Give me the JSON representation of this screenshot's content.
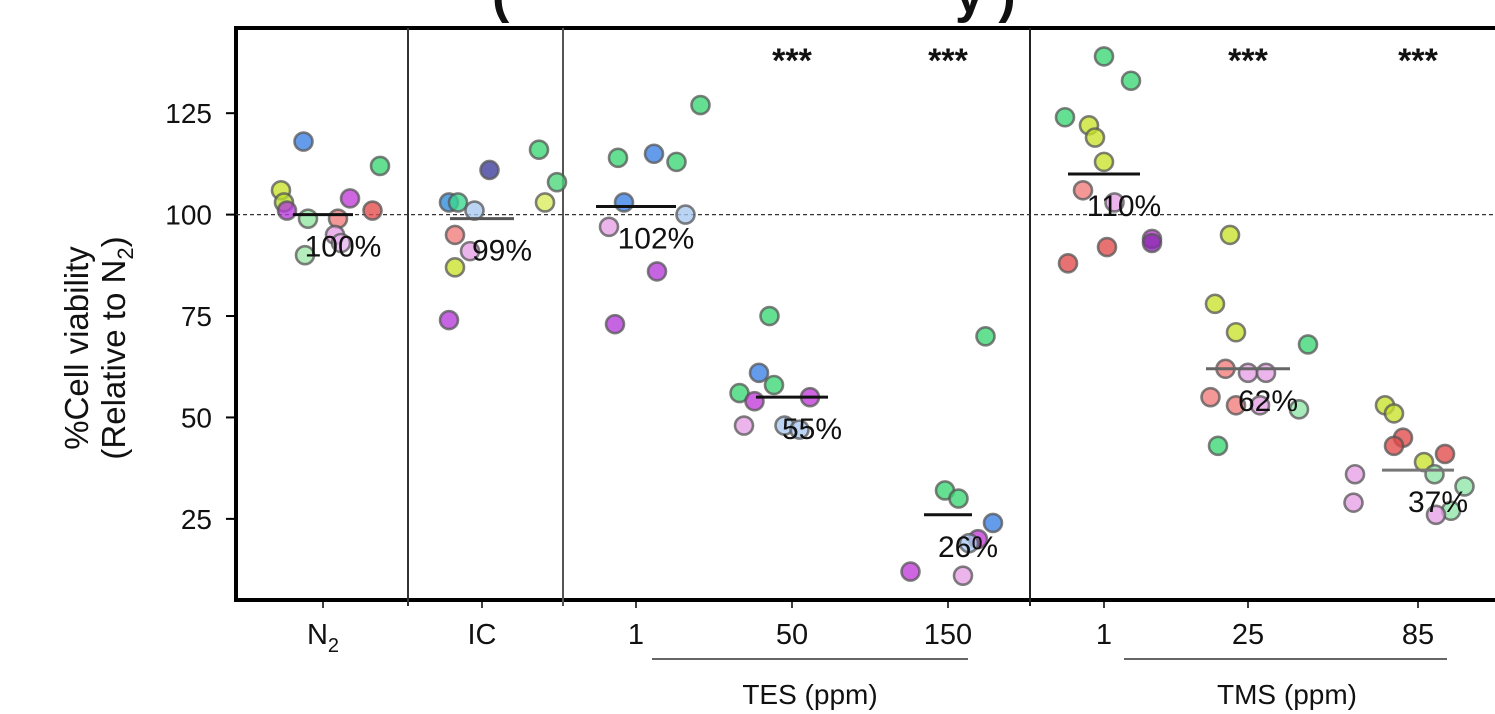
{
  "chart_data": {
    "type": "scatter",
    "title": "(",
    "title_tail": "y )",
    "ylabel_line1": "%Cell viability",
    "ylabel_line2_prefix": "(Relative to N",
    "ylabel_line2_sub": "2",
    "ylabel_line2_suffix": ")",
    "ylim": [
      5,
      146
    ],
    "yticks": [
      {
        "label": "25",
        "value": 25
      },
      {
        "label": "50",
        "value": 50
      },
      {
        "label": "75",
        "value": 75
      },
      {
        "label": "100",
        "value": 100
      },
      {
        "label": "125",
        "value": 125
      }
    ],
    "reference_line": 100,
    "group_axis_labels": [
      "TES (ppm)",
      "TMS (ppm)"
    ],
    "groups": [
      {
        "label": "N",
        "label_sub": "2",
        "mean": 100,
        "mean_label": "100%",
        "significance": "",
        "points": [
          {
            "off": -0.13,
            "y": 118,
            "c": "#3a7fe6"
          },
          {
            "off": -0.28,
            "y": 106,
            "c": "#c8e22a"
          },
          {
            "off": -0.26,
            "y": 103,
            "c": "#b7dd2e"
          },
          {
            "off": -0.24,
            "y": 101,
            "c": "#b53ad8"
          },
          {
            "off": -0.1,
            "y": 99,
            "c": "#8fe6a0"
          },
          {
            "off": 0.38,
            "y": 112,
            "c": "#3ad672"
          },
          {
            "off": 0.18,
            "y": 104,
            "c": "#c03ad8"
          },
          {
            "off": 0.33,
            "y": 101,
            "c": "#e24a4a"
          },
          {
            "off": 0.1,
            "y": 99,
            "c": "#f07a7a"
          },
          {
            "off": 0.08,
            "y": 95,
            "c": "#e6a0e6"
          },
          {
            "off": 0.12,
            "y": 93,
            "c": "#e8b3ef"
          },
          {
            "off": -0.12,
            "y": 90,
            "c": "#9fe8a8"
          }
        ]
      },
      {
        "label": "IC",
        "label_sub": "",
        "mean": 99,
        "mean_label": "99%",
        "significance": "",
        "points": [
          {
            "off": 0.05,
            "y": 111,
            "c": "#3a3a9a"
          },
          {
            "off": 0.38,
            "y": 116,
            "c": "#3ad672"
          },
          {
            "off": 0.5,
            "y": 108,
            "c": "#4ad67a"
          },
          {
            "off": 0.42,
            "y": 103,
            "c": "#d8ec5a"
          },
          {
            "off": -0.22,
            "y": 103,
            "c": "#2a8ad8"
          },
          {
            "off": -0.16,
            "y": 103,
            "c": "#3ad690"
          },
          {
            "off": -0.05,
            "y": 101,
            "c": "#a8c8ef"
          },
          {
            "off": -0.18,
            "y": 95,
            "c": "#f07a7a"
          },
          {
            "off": -0.08,
            "y": 91,
            "c": "#e6a0e6"
          },
          {
            "off": -0.18,
            "y": 87,
            "c": "#c8e22a"
          },
          {
            "off": -0.22,
            "y": 74,
            "c": "#b53ad8"
          }
        ]
      },
      {
        "label": "1",
        "label_sub": "",
        "mean": 102,
        "mean_label": "102%",
        "significance": "",
        "points": [
          {
            "off": 0.43,
            "y": 127,
            "c": "#3ad672"
          },
          {
            "off": -0.12,
            "y": 114,
            "c": "#3ad672"
          },
          {
            "off": 0.12,
            "y": 115,
            "c": "#3a7fe6"
          },
          {
            "off": 0.27,
            "y": 113,
            "c": "#3ad672"
          },
          {
            "off": -0.08,
            "y": 103,
            "c": "#3a7fe6"
          },
          {
            "off": 0.33,
            "y": 100,
            "c": "#a8c8ef"
          },
          {
            "off": -0.18,
            "y": 97,
            "c": "#e6a0e6"
          },
          {
            "off": 0.14,
            "y": 86,
            "c": "#b53ad8"
          },
          {
            "off": -0.14,
            "y": 73,
            "c": "#b53ad8"
          }
        ]
      },
      {
        "label": "50",
        "label_sub": "",
        "mean": 55,
        "mean_label": "55%",
        "significance": "***",
        "points": [
          {
            "off": -0.15,
            "y": 75,
            "c": "#3ad672"
          },
          {
            "off": -0.22,
            "y": 61,
            "c": "#3a7fe6"
          },
          {
            "off": -0.35,
            "y": 56,
            "c": "#3ad672"
          },
          {
            "off": -0.12,
            "y": 58,
            "c": "#3ad672"
          },
          {
            "off": 0.12,
            "y": 55,
            "c": "#c03ad8"
          },
          {
            "off": -0.25,
            "y": 54,
            "c": "#c03ad8"
          },
          {
            "off": -0.32,
            "y": 48,
            "c": "#e6a0e6"
          },
          {
            "off": -0.05,
            "y": 48,
            "c": "#a8c8ef"
          },
          {
            "off": 0.05,
            "y": 47,
            "c": "#a8c8ef"
          }
        ]
      },
      {
        "label": "150",
        "label_sub": "",
        "mean": 26,
        "mean_label": "26%",
        "significance": "***",
        "points": [
          {
            "off": 0.25,
            "y": 70,
            "c": "#3ad672"
          },
          {
            "off": -0.02,
            "y": 32,
            "c": "#3ad672"
          },
          {
            "off": 0.07,
            "y": 30,
            "c": "#3ad672"
          },
          {
            "off": 0.3,
            "y": 24,
            "c": "#3a7fe6"
          },
          {
            "off": 0.2,
            "y": 20,
            "c": "#c03ad8"
          },
          {
            "off": 0.14,
            "y": 19,
            "c": "#a8c8ef"
          },
          {
            "off": -0.25,
            "y": 12,
            "c": "#c03ad8"
          },
          {
            "off": 0.1,
            "y": 11,
            "c": "#e6a0e6"
          }
        ]
      },
      {
        "label": "1",
        "label_sub": "",
        "mean": 110,
        "mean_label": "110%",
        "significance": "",
        "points": [
          {
            "off": 0.0,
            "y": 139,
            "c": "#3ad672"
          },
          {
            "off": 0.18,
            "y": 133,
            "c": "#3ad672"
          },
          {
            "off": -0.26,
            "y": 124,
            "c": "#3ad672"
          },
          {
            "off": -0.1,
            "y": 122,
            "c": "#c8e22a"
          },
          {
            "off": -0.06,
            "y": 119,
            "c": "#c8e22a"
          },
          {
            "off": 0.0,
            "y": 113,
            "c": "#c8e22a"
          },
          {
            "off": -0.14,
            "y": 106,
            "c": "#f07a7a"
          },
          {
            "off": 0.07,
            "y": 103,
            "c": "#e6a0e6"
          },
          {
            "off": 0.32,
            "y": 94,
            "c": "#c03ad8"
          },
          {
            "off": 0.32,
            "y": 93,
            "c": "#8a2ab0"
          },
          {
            "off": 0.02,
            "y": 92,
            "c": "#e24a4a"
          },
          {
            "off": -0.24,
            "y": 88,
            "c": "#e24a4a"
          }
        ]
      },
      {
        "label": "25",
        "label_sub": "",
        "mean": 62,
        "mean_label": "62%",
        "significance": "***",
        "points": [
          {
            "off": -0.12,
            "y": 95,
            "c": "#c8e22a"
          },
          {
            "off": -0.22,
            "y": 78,
            "c": "#c8e22a"
          },
          {
            "off": -0.08,
            "y": 71,
            "c": "#c8e22a"
          },
          {
            "off": 0.4,
            "y": 68,
            "c": "#3ad672"
          },
          {
            "off": -0.15,
            "y": 62,
            "c": "#f07a7a"
          },
          {
            "off": 0.0,
            "y": 61,
            "c": "#e6a0e6"
          },
          {
            "off": 0.12,
            "y": 61,
            "c": "#e6a0e6"
          },
          {
            "off": -0.25,
            "y": 55,
            "c": "#f07a7a"
          },
          {
            "off": -0.08,
            "y": 53,
            "c": "#f07a7a"
          },
          {
            "off": 0.08,
            "y": 53,
            "c": "#e6a0e6"
          },
          {
            "off": 0.34,
            "y": 52,
            "c": "#8fe6a8"
          },
          {
            "off": -0.2,
            "y": 43,
            "c": "#3ad672"
          }
        ]
      },
      {
        "label": "85",
        "label_sub": "",
        "mean": 37,
        "mean_label": "37%",
        "significance": "***",
        "points": [
          {
            "off": -0.22,
            "y": 53,
            "c": "#c8e22a"
          },
          {
            "off": -0.16,
            "y": 51,
            "c": "#c8e22a"
          },
          {
            "off": -0.1,
            "y": 45,
            "c": "#e24a4a"
          },
          {
            "off": -0.16,
            "y": 43,
            "c": "#e24a4a"
          },
          {
            "off": 0.18,
            "y": 41,
            "c": "#e24a4a"
          },
          {
            "off": 0.04,
            "y": 39,
            "c": "#c8e22a"
          },
          {
            "off": -0.42,
            "y": 36,
            "c": "#e6a0e6"
          },
          {
            "off": 0.11,
            "y": 36,
            "c": "#8fe6a8"
          },
          {
            "off": 0.31,
            "y": 33,
            "c": "#8fe6a8"
          },
          {
            "off": -0.43,
            "y": 29,
            "c": "#e6a0e6"
          },
          {
            "off": 0.22,
            "y": 27,
            "c": "#8fe6a8"
          },
          {
            "off": 0.12,
            "y": 26,
            "c": "#e6a0e6"
          }
        ]
      }
    ]
  }
}
